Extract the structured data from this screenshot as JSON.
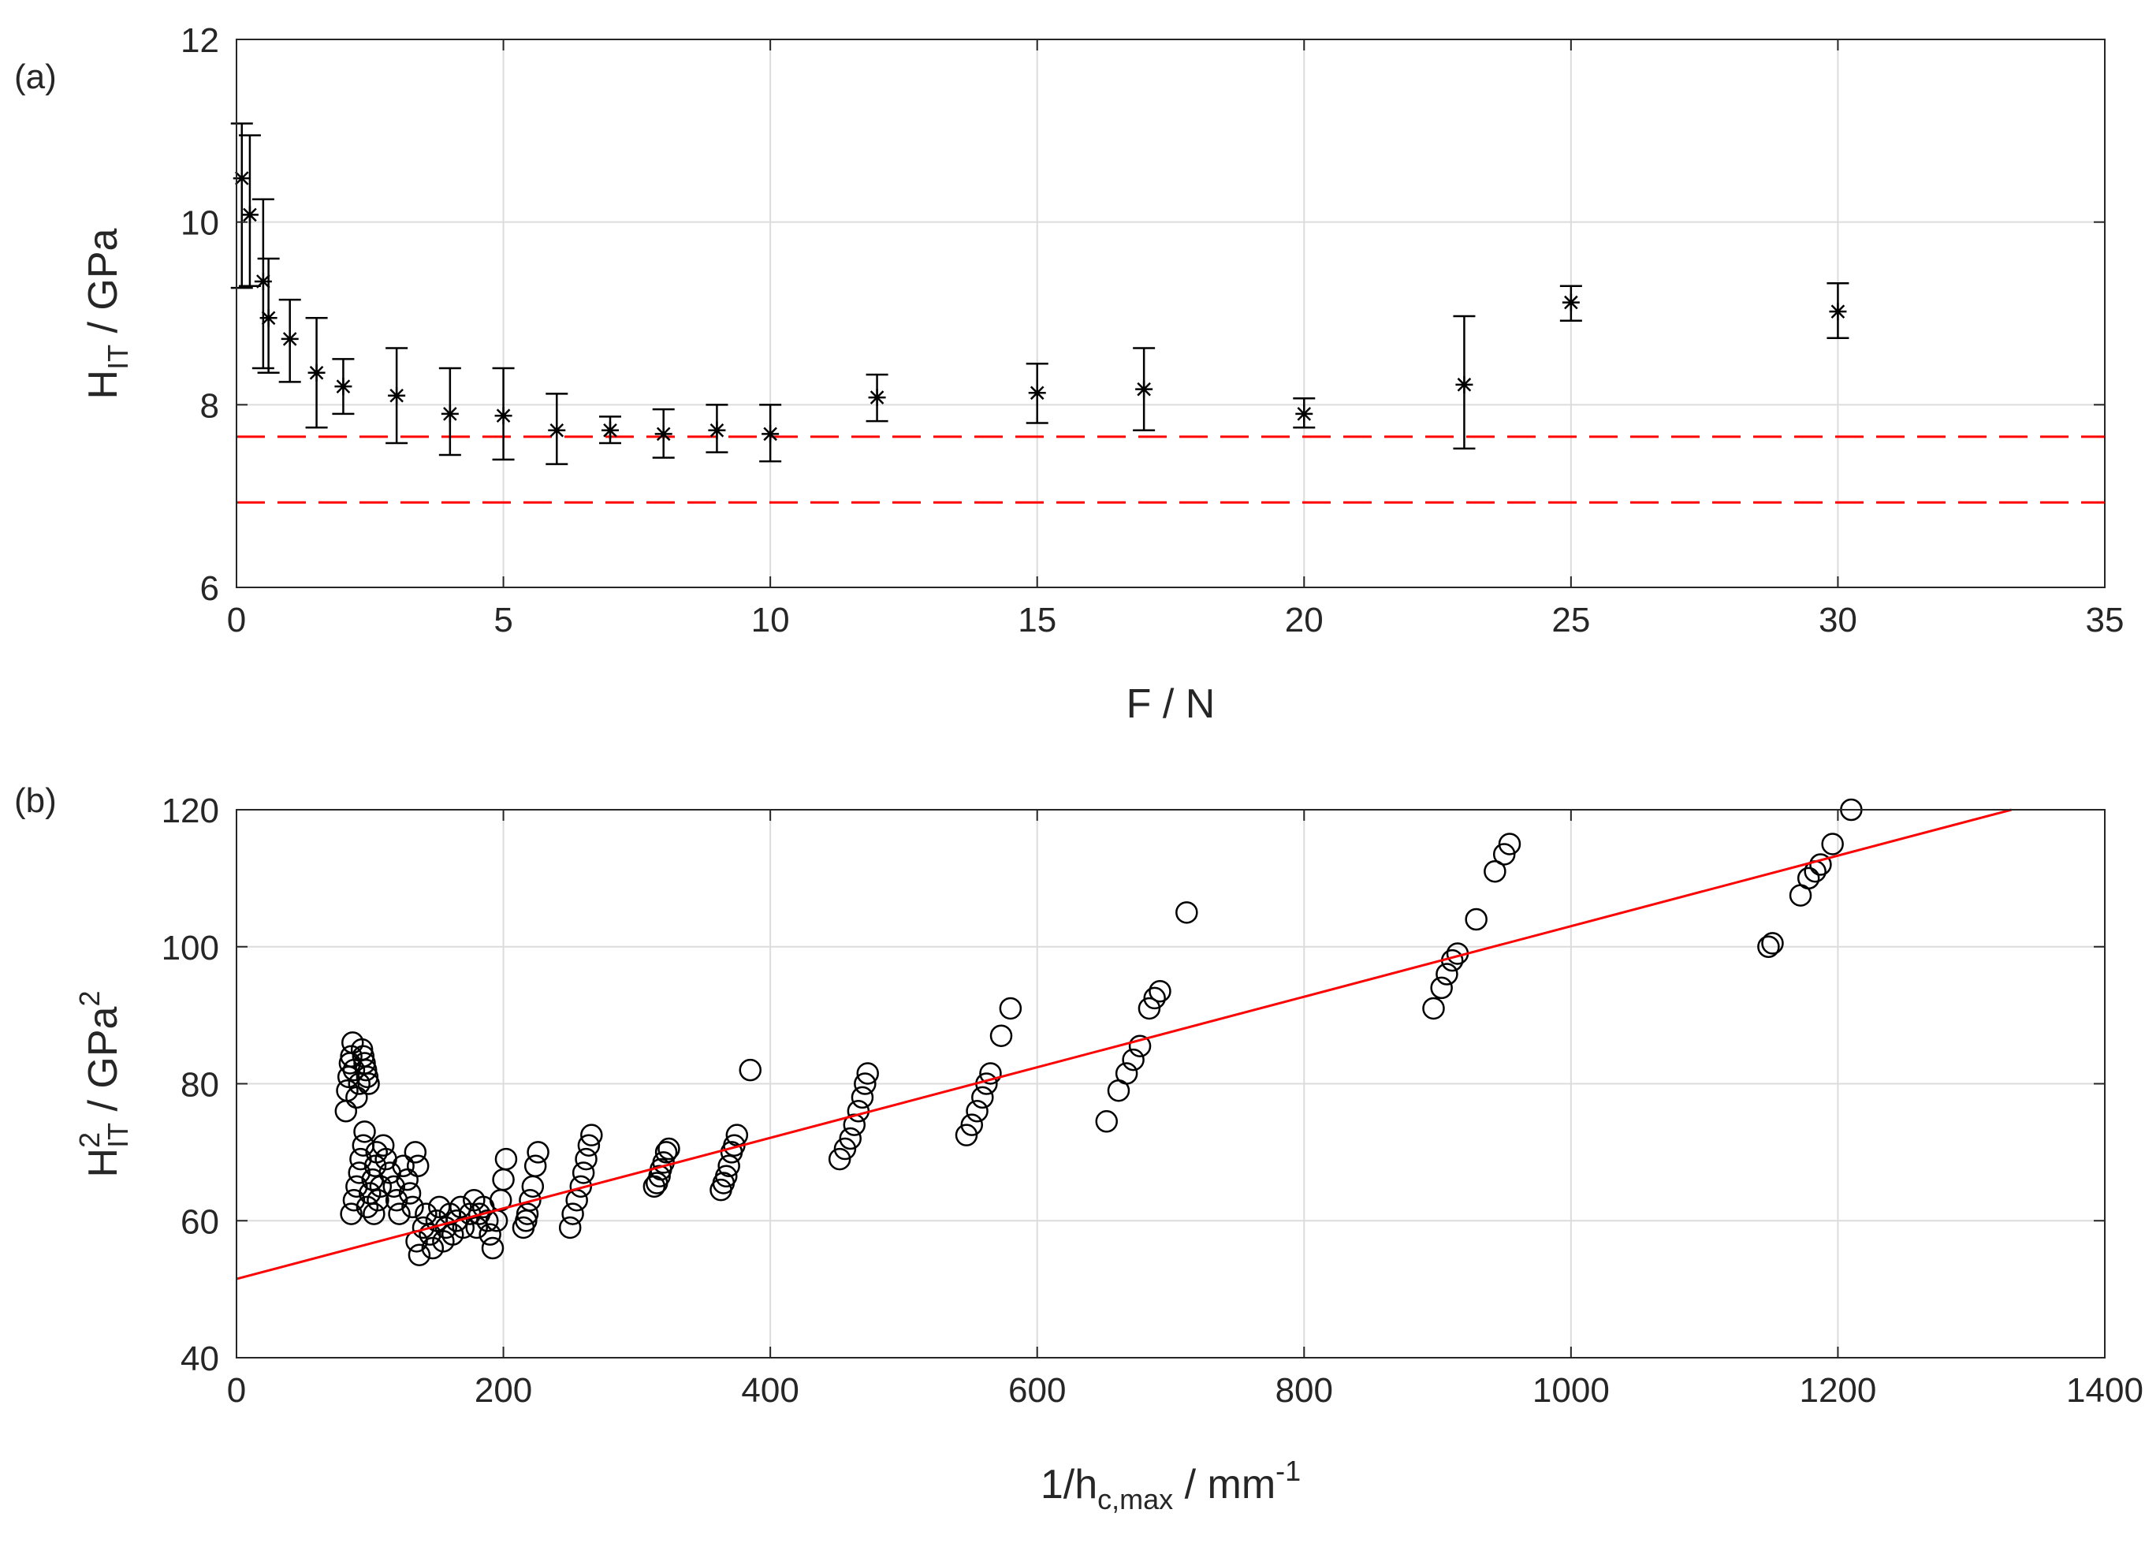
{
  "chart_data": [
    {
      "panel": "(a)",
      "type": "scatter",
      "marker": "asterisk",
      "error_bars": true,
      "xlabel": "F / N",
      "ylabel": {
        "main": "H",
        "sub": "IT",
        "unit": " / GPa"
      },
      "xlim": [
        0,
        35
      ],
      "ylim": [
        6,
        12
      ],
      "xticks": [
        0,
        5,
        10,
        15,
        20,
        25,
        30,
        35
      ],
      "yticks": [
        6,
        8,
        10,
        12
      ],
      "grid": true,
      "points": [
        {
          "x": 0.1,
          "y": 10.48,
          "lo": 9.28,
          "hi": 11.08
        },
        {
          "x": 0.25,
          "y": 10.08,
          "lo": 9.3,
          "hi": 10.95
        },
        {
          "x": 0.5,
          "y": 9.35,
          "lo": 8.4,
          "hi": 10.25
        },
        {
          "x": 0.6,
          "y": 8.95,
          "lo": 8.35,
          "hi": 9.6
        },
        {
          "x": 1,
          "y": 8.72,
          "lo": 8.25,
          "hi": 9.15
        },
        {
          "x": 1.5,
          "y": 8.35,
          "lo": 7.75,
          "hi": 8.95
        },
        {
          "x": 2,
          "y": 8.2,
          "lo": 7.9,
          "hi": 8.5
        },
        {
          "x": 3,
          "y": 8.1,
          "lo": 7.58,
          "hi": 8.62
        },
        {
          "x": 4,
          "y": 7.9,
          "lo": 7.45,
          "hi": 8.4
        },
        {
          "x": 5,
          "y": 7.88,
          "lo": 7.4,
          "hi": 8.4
        },
        {
          "x": 6,
          "y": 7.72,
          "lo": 7.35,
          "hi": 8.12
        },
        {
          "x": 7,
          "y": 7.72,
          "lo": 7.58,
          "hi": 7.87
        },
        {
          "x": 8,
          "y": 7.68,
          "lo": 7.42,
          "hi": 7.95
        },
        {
          "x": 9,
          "y": 7.72,
          "lo": 7.48,
          "hi": 8.0
        },
        {
          "x": 10,
          "y": 7.68,
          "lo": 7.38,
          "hi": 8.0
        },
        {
          "x": 12,
          "y": 8.08,
          "lo": 7.82,
          "hi": 8.33
        },
        {
          "x": 15,
          "y": 8.13,
          "lo": 7.8,
          "hi": 8.45
        },
        {
          "x": 17,
          "y": 8.17,
          "lo": 7.72,
          "hi": 8.62
        },
        {
          "x": 20,
          "y": 7.9,
          "lo": 7.75,
          "hi": 8.07
        },
        {
          "x": 23,
          "y": 8.22,
          "lo": 7.52,
          "hi": 8.97
        },
        {
          "x": 25,
          "y": 9.12,
          "lo": 8.92,
          "hi": 9.3
        },
        {
          "x": 30,
          "y": 9.02,
          "lo": 8.73,
          "hi": 9.33
        }
      ],
      "reference_lines": [
        {
          "y": 7.65,
          "style": "dashed",
          "color": "#ff0000"
        },
        {
          "y": 6.93,
          "style": "dashed",
          "color": "#ff0000"
        }
      ]
    },
    {
      "panel": "(b)",
      "type": "scatter",
      "marker": "circle",
      "xlabel": {
        "main": "1/h",
        "sub": "c,max",
        "unit": " / mm",
        "sup": "-1"
      },
      "ylabel": {
        "main": "H",
        "sup": "2",
        "sub": "IT",
        "unit": " / GPa",
        "unit_sup": "2"
      },
      "xlim": [
        0,
        1400
      ],
      "ylim": [
        40,
        120
      ],
      "xticks": [
        0,
        200,
        400,
        600,
        800,
        1000,
        1200,
        1400
      ],
      "yticks": [
        40,
        60,
        80,
        100,
        120
      ],
      "grid": true,
      "fit_line": {
        "x": [
          0,
          1330
        ],
        "y": [
          51.5,
          120
        ],
        "color": "#ff0000"
      },
      "points": [
        [
          82,
          76
        ],
        [
          83,
          79
        ],
        [
          84,
          81
        ],
        [
          85,
          83
        ],
        [
          86,
          84
        ],
        [
          87,
          86
        ],
        [
          88,
          82
        ],
        [
          90,
          78
        ],
        [
          92,
          80
        ],
        [
          94,
          85
        ],
        [
          95,
          84
        ],
        [
          96,
          83
        ],
        [
          97,
          82
        ],
        [
          98,
          81
        ],
        [
          99,
          80
        ],
        [
          86,
          61
        ],
        [
          88,
          63
        ],
        [
          90,
          65
        ],
        [
          92,
          67
        ],
        [
          93,
          69
        ],
        [
          95,
          71
        ],
        [
          96,
          73
        ],
        [
          98,
          62
        ],
        [
          100,
          64
        ],
        [
          102,
          66
        ],
        [
          104,
          68
        ],
        [
          105,
          70
        ],
        [
          103,
          61
        ],
        [
          106,
          63
        ],
        [
          108,
          65
        ],
        [
          110,
          71
        ],
        [
          112,
          69
        ],
        [
          115,
          67
        ],
        [
          118,
          65
        ],
        [
          120,
          63
        ],
        [
          122,
          61
        ],
        [
          125,
          68
        ],
        [
          128,
          66
        ],
        [
          130,
          64
        ],
        [
          132,
          62
        ],
        [
          134,
          70
        ],
        [
          136,
          68
        ],
        [
          135,
          57
        ],
        [
          137,
          55
        ],
        [
          140,
          59
        ],
        [
          142,
          61
        ],
        [
          145,
          58
        ],
        [
          147,
          56
        ],
        [
          150,
          60
        ],
        [
          152,
          62
        ],
        [
          155,
          57
        ],
        [
          157,
          59
        ],
        [
          160,
          61
        ],
        [
          162,
          58
        ],
        [
          165,
          60
        ],
        [
          168,
          62
        ],
        [
          170,
          59
        ],
        [
          175,
          61
        ],
        [
          178,
          63
        ],
        [
          180,
          59
        ],
        [
          182,
          61
        ],
        [
          185,
          62
        ],
        [
          188,
          60
        ],
        [
          190,
          58
        ],
        [
          192,
          56
        ],
        [
          195,
          60
        ],
        [
          198,
          63
        ],
        [
          200,
          66
        ],
        [
          202,
          69
        ],
        [
          215,
          59
        ],
        [
          217,
          60
        ],
        [
          218,
          61
        ],
        [
          220,
          63
        ],
        [
          222,
          65
        ],
        [
          224,
          68
        ],
        [
          226,
          70
        ],
        [
          250,
          59
        ],
        [
          252,
          61
        ],
        [
          255,
          63
        ],
        [
          258,
          65
        ],
        [
          260,
          67
        ],
        [
          262,
          69
        ],
        [
          264,
          71
        ],
        [
          266,
          72.5
        ],
        [
          313,
          65
        ],
        [
          315,
          65.5
        ],
        [
          317,
          66.5
        ],
        [
          318,
          67.5
        ],
        [
          320,
          68.5
        ],
        [
          322,
          70
        ],
        [
          324,
          70.5
        ],
        [
          363,
          64.5
        ],
        [
          365,
          65.5
        ],
        [
          367,
          66.5
        ],
        [
          369,
          68
        ],
        [
          371,
          70
        ],
        [
          373,
          71
        ],
        [
          375,
          72.5
        ],
        [
          385,
          82
        ],
        [
          452,
          69
        ],
        [
          456,
          70.5
        ],
        [
          460,
          72
        ],
        [
          463,
          74
        ],
        [
          466,
          76
        ],
        [
          469,
          78
        ],
        [
          471,
          80
        ],
        [
          473,
          81.5
        ],
        [
          547,
          72.5
        ],
        [
          551,
          74
        ],
        [
          555,
          76
        ],
        [
          559,
          78
        ],
        [
          562,
          80
        ],
        [
          565,
          81.5
        ],
        [
          573,
          87
        ],
        [
          580,
          91
        ],
        [
          652,
          74.5
        ],
        [
          661,
          79
        ],
        [
          667,
          81.5
        ],
        [
          672,
          83.5
        ],
        [
          677,
          85.5
        ],
        [
          684,
          91
        ],
        [
          688,
          92.5
        ],
        [
          692,
          93.5
        ],
        [
          712,
          105
        ],
        [
          897,
          91
        ],
        [
          903,
          94
        ],
        [
          907,
          96
        ],
        [
          911,
          98
        ],
        [
          915,
          99
        ],
        [
          929,
          104
        ],
        [
          943,
          111
        ],
        [
          950,
          113.5
        ],
        [
          954,
          115
        ],
        [
          1148,
          100
        ],
        [
          1151,
          100.5
        ],
        [
          1172,
          107.5
        ],
        [
          1178,
          110
        ],
        [
          1183,
          111
        ],
        [
          1187,
          112
        ],
        [
          1196,
          115
        ],
        [
          1210,
          120
        ]
      ]
    }
  ]
}
